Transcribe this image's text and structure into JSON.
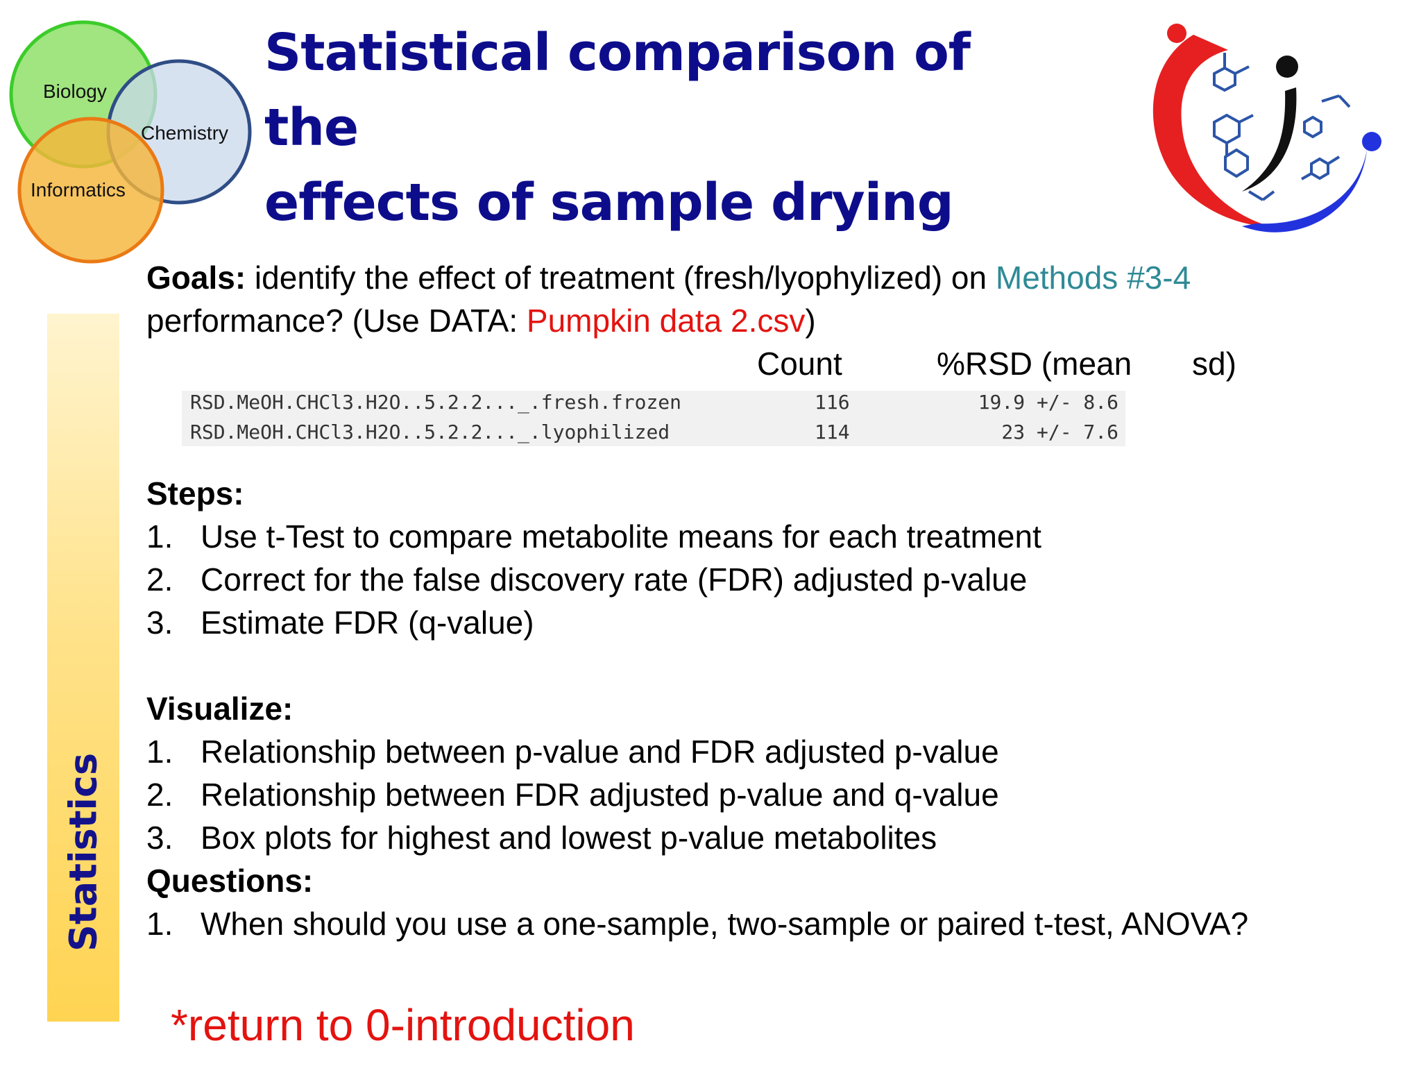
{
  "venn": {
    "labels": [
      "Biology",
      "Chemistry",
      "Informatics"
    ],
    "colors": {
      "biology": "#8fe06a",
      "chemistry": "#c9d8ec",
      "informatics": "#f5b63a"
    }
  },
  "title": {
    "line1": "Statistical comparison of the",
    "line2": "effects of sample drying"
  },
  "sidebar": {
    "label": "Statistics"
  },
  "goals": {
    "label": "Goals:",
    "text1": " identify the effect of treatment (fresh/lyophylized) on ",
    "methods": "Methods #3-4",
    "text2": "performance? (Use DATA: ",
    "data_file": "Pumpkin data 2.csv",
    "text3": ")"
  },
  "table": {
    "headers": {
      "count": "Count",
      "rsd": "%RSD (mean",
      "sd": "sd)"
    },
    "rows": [
      {
        "name": "RSD.MeOH.CHCl3.H2O..5.2.2..._.fresh.frozen",
        "count": "116",
        "rsd": "19.9 +/- 8.6"
      },
      {
        "name": "RSD.MeOH.CHCl3.H2O..5.2.2..._.lyophilized",
        "count": "114",
        "rsd": "23 +/- 7.6"
      }
    ]
  },
  "steps": {
    "heading": "Steps:",
    "items": [
      {
        "num": "1.",
        "text": "Use t-Test to compare metabolite means for each treatment"
      },
      {
        "num": "2.",
        "text": "Correct for the false discovery rate (FDR) adjusted p-value"
      },
      {
        "num": "3.",
        "text": "Estimate FDR (q-value)"
      }
    ]
  },
  "visualize": {
    "heading": "Visualize:",
    "items": [
      {
        "num": "1.",
        "text": "Relationship between p-value and FDR adjusted p-value"
      },
      {
        "num": "2.",
        "text": "Relationship between FDR adjusted p-value and q-value"
      },
      {
        "num": "3.",
        "text": "Box plots for highest and lowest p-value metabolites"
      }
    ]
  },
  "questions": {
    "heading": "Questions:",
    "items": [
      {
        "num": "1.",
        "text": "When should you use a one-sample, two-sample or paired t-test, ANOVA?"
      }
    ]
  },
  "link": {
    "text": "*return to 0-introduction"
  },
  "colors": {
    "title": "#0d0d8c",
    "accent_red": "#e3130f",
    "accent_teal": "#2f8a96"
  }
}
